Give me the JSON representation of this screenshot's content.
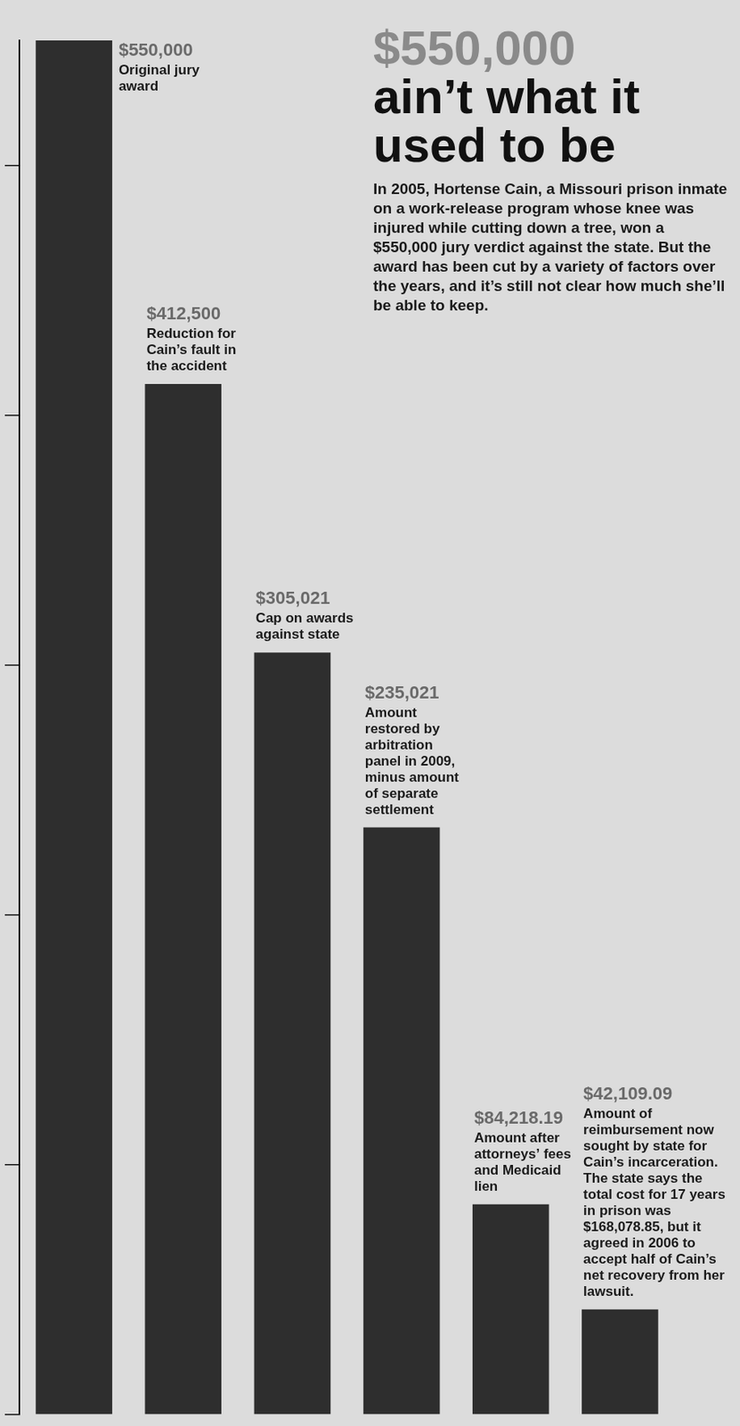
{
  "chart_data": {
    "type": "bar",
    "title": "$550,000 ain’t what it used to be",
    "subtitle": "In 2005, Hortense Cain, a Missouri prison inmate on a work-release program whose knee was injured while cutting down a tree, won a $550,000 jury verdict against the state. But the award has been cut by a variety of factors over the years, and it’s still not clear how much she’ll be able to keep.",
    "categories": [
      null,
      null,
      null,
      null,
      null,
      null
    ],
    "values": [
      550000,
      412500,
      305021,
      235021,
      84218.19,
      42109.09
    ],
    "value_labels": [
      "$550,000",
      "$412,500",
      "$305,021",
      "$235,021",
      "$84,218.19",
      "$42,109.09"
    ],
    "annotations": [
      "Original jury award",
      "Reduction for Cain’s fault in the accident",
      "Cap on awards against state",
      "Amount restored by arbitration panel in 2009, minus amount of separate settlement",
      "Amount after attorneys’ fees and Medicaid lien",
      "Amount of reimbursement now sought by state for Cain’s incarceration. The state says the total cost for 17 years in prison was $168,078.85, but it agreed in 2006 to accept half of Cain’s net recovery from her lawsuit."
    ],
    "color": "#2e2e2e",
    "ylim": [
      0,
      550000
    ],
    "yticks": [
      0,
      100000,
      200000,
      300000,
      400000,
      500000
    ],
    "grid": false,
    "tick_labels": false,
    "data_labels": true
  }
}
